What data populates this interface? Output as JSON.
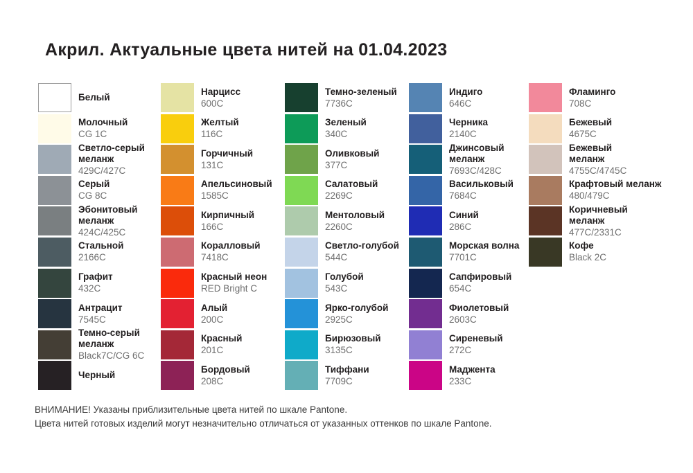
{
  "title": "Акрил. Актуальные цвета нитей на 01.04.2023",
  "colors": {
    "white_swatch_border": "#9B9B9B",
    "name_text": "#232021",
    "code_text": "#6E6E6E"
  },
  "columns": [
    {
      "items": [
        {
          "name": "Белый",
          "code": "",
          "color": "#FFFFFF",
          "outlined": true
        },
        {
          "name": "Молочный",
          "code": "CG 1C",
          "color": "#FFFBE8"
        },
        {
          "name": "Светло-серый\nмеланж",
          "code": "429C/427C",
          "color": "#9FAAB5"
        },
        {
          "name": "Серый",
          "code": "CG 8C",
          "color": "#8C9196"
        },
        {
          "name": "Эбонитовый\nмеланж",
          "code": "424C/425C",
          "color": "#7A7F81"
        },
        {
          "name": "Стальной",
          "code": "2166C",
          "color": "#4D5C62"
        },
        {
          "name": "Графит",
          "code": "432C",
          "color": "#34453E"
        },
        {
          "name": "Антрацит",
          "code": "7545C",
          "color": "#263440"
        },
        {
          "name": "Темно-серый\nмеланж",
          "code": "Black7C/CG 6C",
          "color": "#443E35"
        },
        {
          "name": "Черный",
          "code": "",
          "color": "#262124"
        }
      ]
    },
    {
      "items": [
        {
          "name": "Нарцисс",
          "code": "600C",
          "color": "#E5E3A4"
        },
        {
          "name": "Желтый",
          "code": "116C",
          "color": "#F9CE0D"
        },
        {
          "name": "Горчичный",
          "code": "131C",
          "color": "#D3902F"
        },
        {
          "name": "Апельсиновый",
          "code": "1585C",
          "color": "#F97B16"
        },
        {
          "name": "Кирпичный",
          "code": "166C",
          "color": "#DC4E09"
        },
        {
          "name": "Коралловый",
          "code": "7418C",
          "color": "#CD6B72"
        },
        {
          "name": "Красный неон",
          "code": "RED Bright C",
          "color": "#FA2A0C"
        },
        {
          "name": "Алый",
          "code": "200C",
          "color": "#E32132"
        },
        {
          "name": "Красный",
          "code": "201C",
          "color": "#A42837"
        },
        {
          "name": "Бордовый",
          "code": "208C",
          "color": "#8D2256"
        }
      ]
    },
    {
      "items": [
        {
          "name": "Темно-зеленый",
          "code": "7736C",
          "color": "#17402F"
        },
        {
          "name": "Зеленый",
          "code": "340C",
          "color": "#0D9B58"
        },
        {
          "name": "Оливковый",
          "code": "377C",
          "color": "#6FA34A"
        },
        {
          "name": "Салатовый",
          "code": "2269C",
          "color": "#7FD954"
        },
        {
          "name": "Ментоловый",
          "code": "2260C",
          "color": "#AECBAC"
        },
        {
          "name": "Светло-голубой",
          "code": "544C",
          "color": "#C4D4E9"
        },
        {
          "name": "Голубой",
          "code": "543C",
          "color": "#A2C2E0"
        },
        {
          "name": "Ярко-голубой",
          "code": "2925C",
          "color": "#2492D8"
        },
        {
          "name": "Бирюзовый",
          "code": "3135C",
          "color": "#0FAAC9"
        },
        {
          "name": "Тиффани",
          "code": "7709C",
          "color": "#64AFB5"
        }
      ]
    },
    {
      "items": [
        {
          "name": "Индиго",
          "code": "646C",
          "color": "#5584B3"
        },
        {
          "name": "Черника",
          "code": "2140C",
          "color": "#41609D"
        },
        {
          "name": "Джинсовый\nмеланж",
          "code": "7693C/428C",
          "color": "#155F78"
        },
        {
          "name": "Васильковый",
          "code": "7684C",
          "color": "#3465A7"
        },
        {
          "name": "Синий",
          "code": "286C",
          "color": "#1F2CB4"
        },
        {
          "name": "Морская волна",
          "code": "7701C",
          "color": "#1E5A72"
        },
        {
          "name": "Сапфировый",
          "code": "654C",
          "color": "#142750"
        },
        {
          "name": "Фиолетовый",
          "code": "2603C",
          "color": "#722D90"
        },
        {
          "name": "Сиреневый",
          "code": "272C",
          "color": "#9180D3"
        },
        {
          "name": "Маджента",
          "code": "233C",
          "color": "#CB0586"
        }
      ]
    },
    {
      "items": [
        {
          "name": "Фламинго",
          "code": "708C",
          "color": "#F2899B"
        },
        {
          "name": "Бежевый",
          "code": "4675C",
          "color": "#F4DCBE"
        },
        {
          "name": "Бежевый\nмеланж",
          "code": "4755C/4745C",
          "color": "#D2C3BB"
        },
        {
          "name": "Крафтовый меланж",
          "code": "480/479C",
          "color": "#A97B60"
        },
        {
          "name": "Коричневый\nмеланж",
          "code": "477C/2331C",
          "color": "#5B3425"
        },
        {
          "name": "Кофе",
          "code": "Black 2C",
          "color": "#393825"
        }
      ]
    }
  ],
  "footer": {
    "line1": "ВНИМАНИЕ! Указаны приблизительные цвета нитей по шкале Pantone.",
    "line2": "Цвета нитей готовых изделий могут незначительно отличаться от указанных оттенков по шкале Pantone."
  }
}
